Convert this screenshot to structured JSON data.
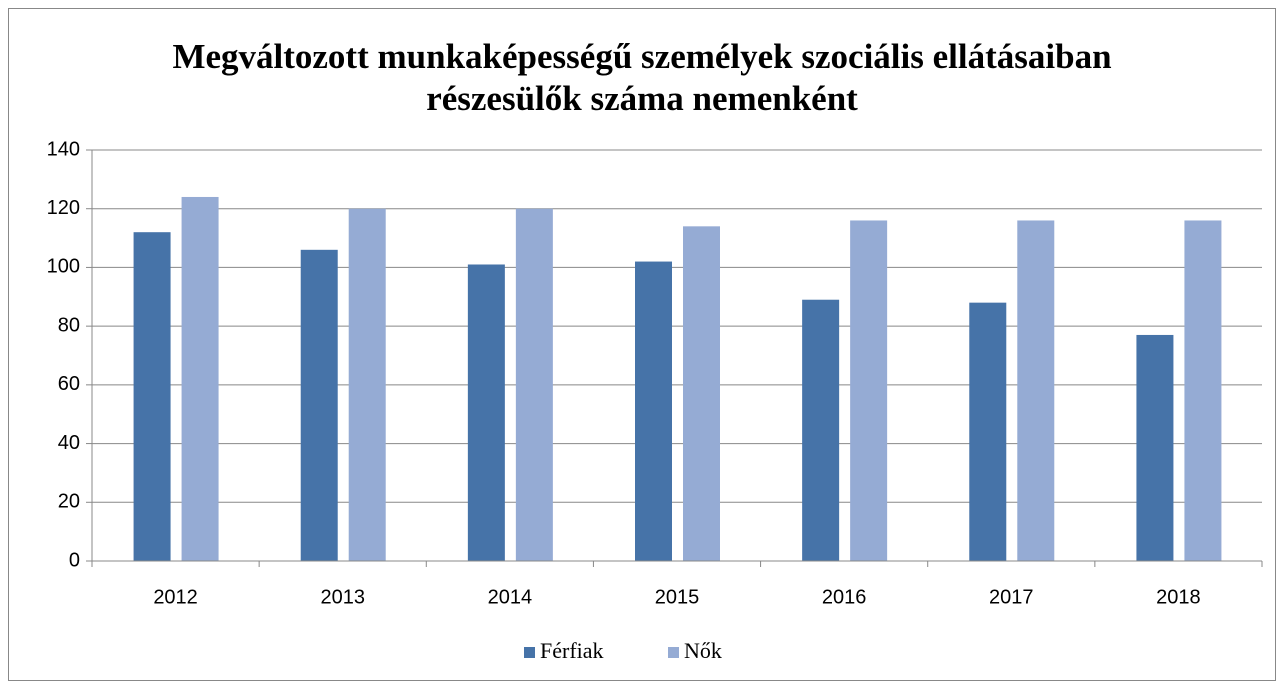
{
  "chart_data": {
    "type": "bar",
    "title": "Megváltozott munkaképességű személyek szociális ellátásaiban részesülők száma nemenként",
    "categories": [
      "2012",
      "2013",
      "2014",
      "2015",
      "2016",
      "2017",
      "2018"
    ],
    "series": [
      {
        "name": "Férfiak",
        "color": "#4673a8",
        "values": [
          112,
          106,
          101,
          102,
          89,
          88,
          77
        ]
      },
      {
        "name": "Nők",
        "color": "#95abd4",
        "values": [
          124,
          120,
          120,
          114,
          116,
          116,
          116
        ]
      }
    ],
    "ylim": [
      0,
      140
    ],
    "yticks": [
      0,
      20,
      40,
      60,
      80,
      100,
      120,
      140
    ],
    "grid": true,
    "legend": "bottom"
  }
}
